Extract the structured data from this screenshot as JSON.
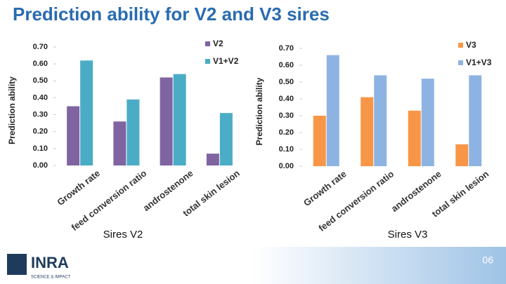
{
  "title": "Prediction ability for V2 and V3 sires",
  "page_number": "06",
  "logo": {
    "name": "INRA",
    "tagline": "SCIENCE & IMPACT"
  },
  "chart_data": [
    {
      "type": "bar",
      "ylabel": "Prediction ability",
      "xlabel": "Sires V2",
      "categories": [
        "Growth rate",
        "feed conversion ratio",
        "androstenone",
        "total skin lesion"
      ],
      "series": [
        {
          "name": "V2",
          "color": "#8064a2",
          "values": [
            0.35,
            0.26,
            0.52,
            0.07
          ]
        },
        {
          "name": "V1+V2",
          "color": "#4bacc6",
          "values": [
            0.62,
            0.39,
            0.54,
            0.31
          ]
        }
      ],
      "ylim": [
        0,
        0.7
      ],
      "yticks": [
        {
          "value": 0,
          "label": "0.00"
        },
        {
          "value": 0.1,
          "label": "0.10"
        },
        {
          "value": 0.2,
          "label": "0.20"
        },
        {
          "value": 0.3,
          "label": "0.30"
        },
        {
          "value": 0.4,
          "label": "0.40"
        },
        {
          "value": 0.5,
          "label": "0.50"
        },
        {
          "value": 0.6,
          "label": "0.60"
        },
        {
          "value": 0.7,
          "label": "0.70"
        }
      ],
      "grid": false,
      "legend": "upper right"
    },
    {
      "type": "bar",
      "ylabel": "Prediction ability",
      "xlabel": "Sires V3",
      "categories": [
        "Growth rate",
        "feed conversion ratio",
        "androstenone",
        "total skin lesion"
      ],
      "series": [
        {
          "name": "V3",
          "color": "#f79646",
          "values": [
            0.3,
            0.41,
            0.33,
            0.13
          ]
        },
        {
          "name": "V1+V3",
          "color": "#8db3e2",
          "values": [
            0.66,
            0.54,
            0.52,
            0.54
          ]
        }
      ],
      "ylim": [
        0,
        0.7
      ],
      "yticks": [
        {
          "value": 0,
          "label": "0.00"
        },
        {
          "value": 0.1,
          "label": "0.10"
        },
        {
          "value": 0.2,
          "label": "0.20"
        },
        {
          "value": 0.3,
          "label": "0.30"
        },
        {
          "value": 0.4,
          "label": "0.40"
        },
        {
          "value": 0.5,
          "label": "0.50"
        },
        {
          "value": 0.6,
          "label": "0.60"
        },
        {
          "value": 0.7,
          "label": "0.70"
        }
      ],
      "grid": false,
      "legend": "upper right"
    }
  ]
}
